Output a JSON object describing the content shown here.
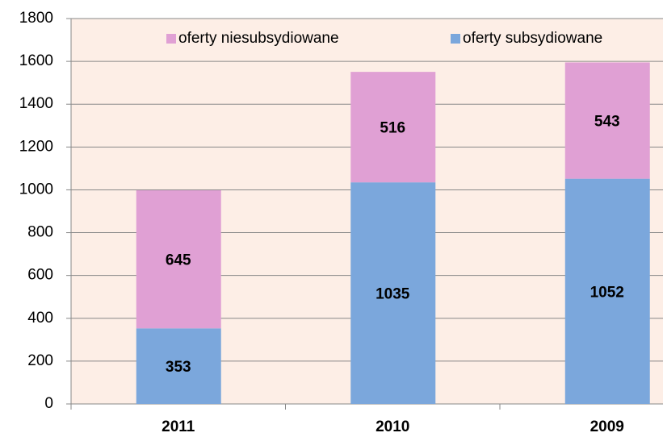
{
  "chart_data": {
    "type": "stacked_bar",
    "categories": [
      "2011",
      "2010",
      "2009"
    ],
    "series": [
      {
        "name": "oferty subsydiowane",
        "color": "#7ba7dc",
        "values": [
          353,
          1035,
          1052
        ]
      },
      {
        "name": "oferty niesubsydiowane",
        "color": "#e0a0d4",
        "values": [
          645,
          516,
          543
        ]
      }
    ],
    "ylim": [
      0,
      1800
    ],
    "yticks": [
      0,
      200,
      400,
      600,
      800,
      1000,
      1200,
      1400,
      1600,
      1800
    ],
    "grid": true,
    "legend": "top"
  }
}
